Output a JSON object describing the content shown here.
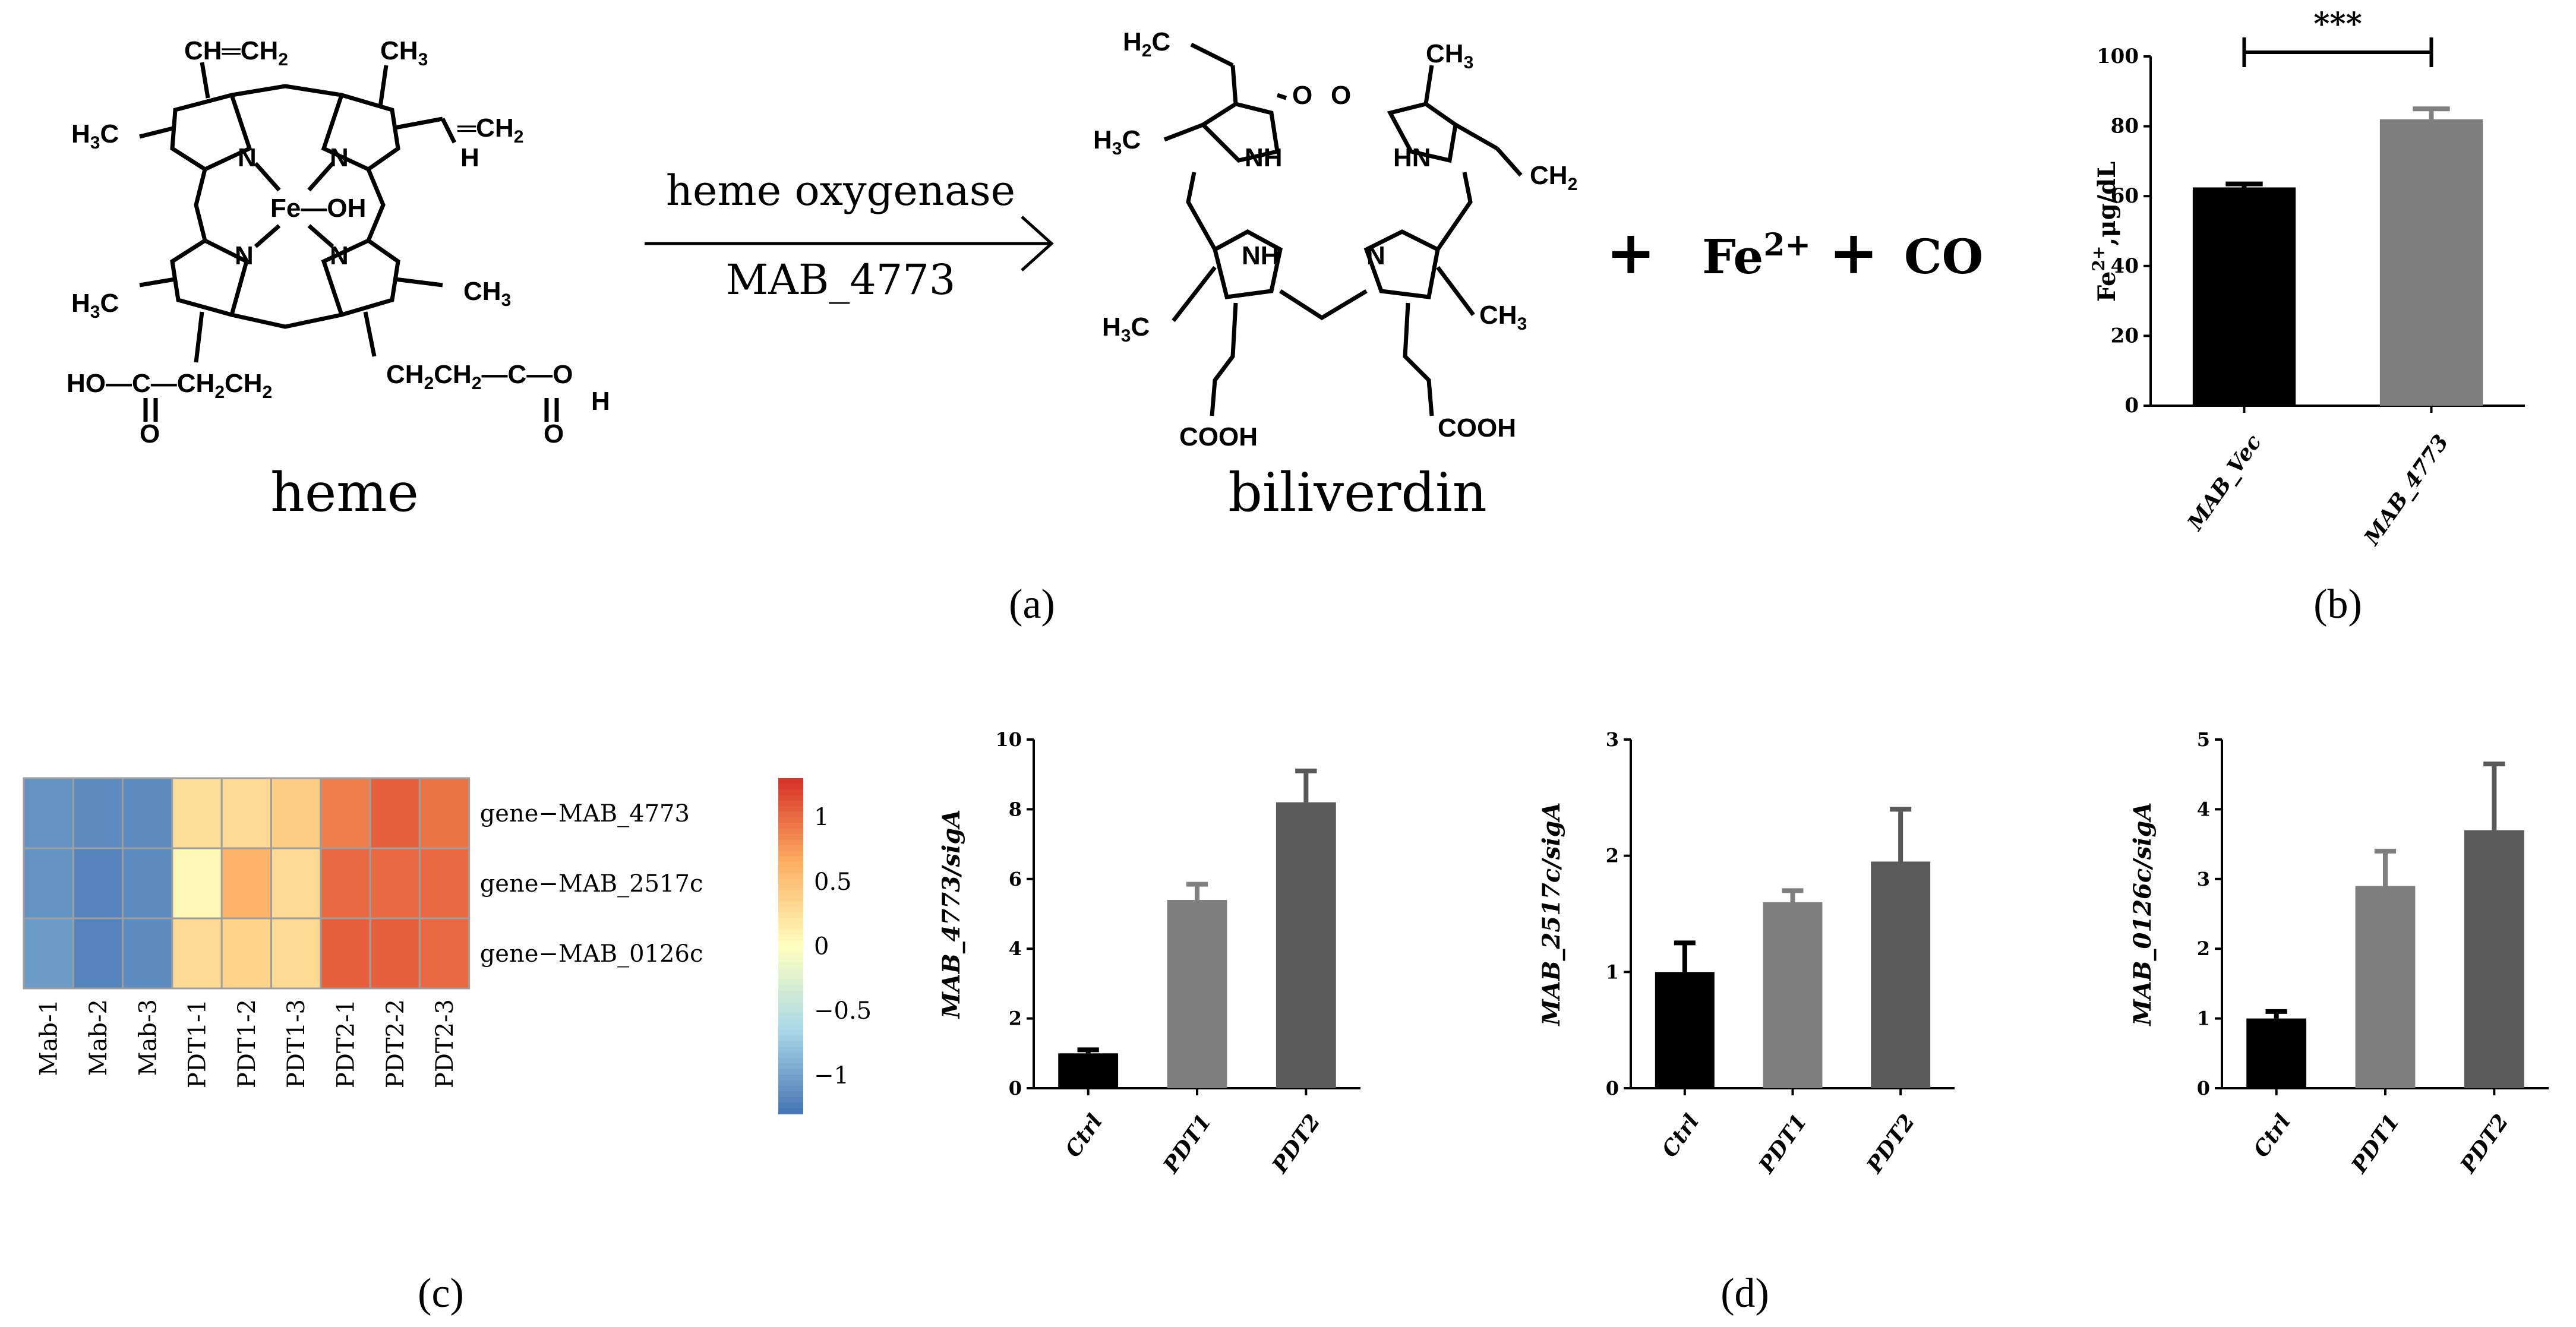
{
  "panel_labels": {
    "a": "(a)",
    "b": "(b)",
    "c": "(c)",
    "d": "(d)"
  },
  "scheme": {
    "reactant": "heme",
    "enzyme": "heme oxygenase",
    "gene": "MAB_4773",
    "product": "biliverdin",
    "plus": "+",
    "iron": "Fe",
    "iron_charge": "2+",
    "monoxide": "CO"
  },
  "heme_atoms": {
    "vinyl_top": "CH═CH",
    "vinyl_top_sub": "2",
    "methyl_top_right": "CH",
    "methyl_top_right_sub": "3",
    "methyl_left_top": "H",
    "methyl_left_top_c": "C",
    "methyl_left_top_sub": "3",
    "vinyl_right": "═CH",
    "vinyl_right_sub": "2",
    "vinyl_right_h": "H",
    "n1": "N",
    "n2": "N",
    "n3": "N",
    "n4": "N",
    "fe_oh": "Fe—OH",
    "methyl_left_bottom": "H",
    "methyl_left_bottom_c": "C",
    "methyl_left_bottom_sub": "3",
    "methyl_right_bottom": "CH",
    "methyl_right_bottom_sub": "3",
    "acid_left": "HO—C—CH",
    "acid_left_sub1": "2",
    "acid_left_cont": "CH",
    "acid_left_sub2": "2",
    "acid_left_o": "O",
    "acid_right": "CH",
    "acid_right_sub1": "2",
    "acid_right_cont": "CH",
    "acid_right_sub2": "2",
    "acid_right_tail": "—C—O",
    "acid_right_h": "H",
    "acid_right_o": "O"
  },
  "biliverdin_atoms": {
    "vinyl_left": "H",
    "vinyl_left_sub": "2",
    "vinyl_left_c": "C",
    "methyl_left": "H",
    "methyl_left_c": "C",
    "methyl_left_sub": "3",
    "o_left": "O",
    "nh_left": "NH",
    "o_right": "O",
    "methyl_right": "CH",
    "methyl_right_sub": "3",
    "hn_right": "HN",
    "vinyl_right": "CH",
    "vinyl_right_sub": "2",
    "nh_mid": "NH",
    "n_mid": "N",
    "methyl_bl": "H",
    "methyl_bl_c": "C",
    "methyl_bl_sub": "3",
    "methyl_br": "CH",
    "methyl_br_sub": "3",
    "cooh_left": "COOH",
    "cooh_right": "COOH"
  },
  "chart_data": [
    {
      "panel": "b",
      "type": "bar",
      "categories": [
        "MAB_Vec",
        "MAB_4773"
      ],
      "values": [
        62.5,
        82
      ],
      "errors": [
        1,
        3
      ],
      "colors": [
        "#000000",
        "#7f7f7f"
      ],
      "ylabel_main": "Fe",
      "ylabel_sup": "2+",
      "ylabel_unit": ",μg/dL",
      "ylim": [
        0,
        100
      ],
      "yticks": [
        0,
        20,
        40,
        60,
        80,
        100
      ],
      "significance": "***"
    },
    {
      "panel": "c",
      "type": "heatmap",
      "columns": [
        "Mab-1",
        "Mab-2",
        "Mab-3",
        "PDT1-1",
        "PDT1-2",
        "PDT1-3",
        "PDT2-1",
        "PDT2-2",
        "PDT2-3"
      ],
      "rows": [
        "gene−MAB_4773",
        "gene−MAB_2517c",
        "gene−MAB_0126c"
      ],
      "values": [
        [
          -1.1,
          -1.15,
          -1.15,
          0.25,
          0.3,
          0.4,
          0.9,
          1.05,
          0.95
        ],
        [
          -1.1,
          -1.2,
          -1.15,
          0.05,
          0.6,
          0.3,
          1.0,
          1.0,
          1.0
        ],
        [
          -1.05,
          -1.2,
          -1.15,
          0.3,
          0.35,
          0.3,
          1.05,
          1.05,
          1.0
        ]
      ],
      "scale_min": -1.3,
      "scale_max": 1.3,
      "colorbar_ticks": [
        1,
        0.5,
        0,
        -0.5,
        -1
      ],
      "colorbar_labels": [
        "1",
        "0.5",
        "0",
        "−0.5",
        "−1"
      ]
    },
    {
      "panel": "d1",
      "type": "bar",
      "categories": [
        "Ctrl",
        "PDT1",
        "PDT2"
      ],
      "values": [
        1.0,
        5.4,
        8.2
      ],
      "errors": [
        0.1,
        0.45,
        0.9
      ],
      "colors": [
        "#000000",
        "#7f7f7f",
        "#595959"
      ],
      "ylabel": "MAB_4773/sigA",
      "ylim": [
        0,
        10
      ],
      "yticks": [
        0,
        2,
        4,
        6,
        8,
        10
      ]
    },
    {
      "panel": "d2",
      "type": "bar",
      "categories": [
        "Ctrl",
        "PDT1",
        "PDT2"
      ],
      "values": [
        1.0,
        1.6,
        1.95
      ],
      "errors": [
        0.25,
        0.1,
        0.45
      ],
      "colors": [
        "#000000",
        "#7f7f7f",
        "#595959"
      ],
      "ylabel": "MAB_2517c/sigA",
      "ylim": [
        0,
        3
      ],
      "yticks": [
        0,
        1,
        2,
        3
      ]
    },
    {
      "panel": "d3",
      "type": "bar",
      "categories": [
        "Ctrl",
        "PDT1",
        "PDT2"
      ],
      "values": [
        1.0,
        2.9,
        3.7
      ],
      "errors": [
        0.1,
        0.5,
        0.95
      ],
      "colors": [
        "#000000",
        "#7f7f7f",
        "#595959"
      ],
      "ylabel": "MAB_0126c/sigA",
      "ylim": [
        0,
        5
      ],
      "yticks": [
        0,
        1,
        2,
        3,
        4,
        5
      ]
    }
  ]
}
